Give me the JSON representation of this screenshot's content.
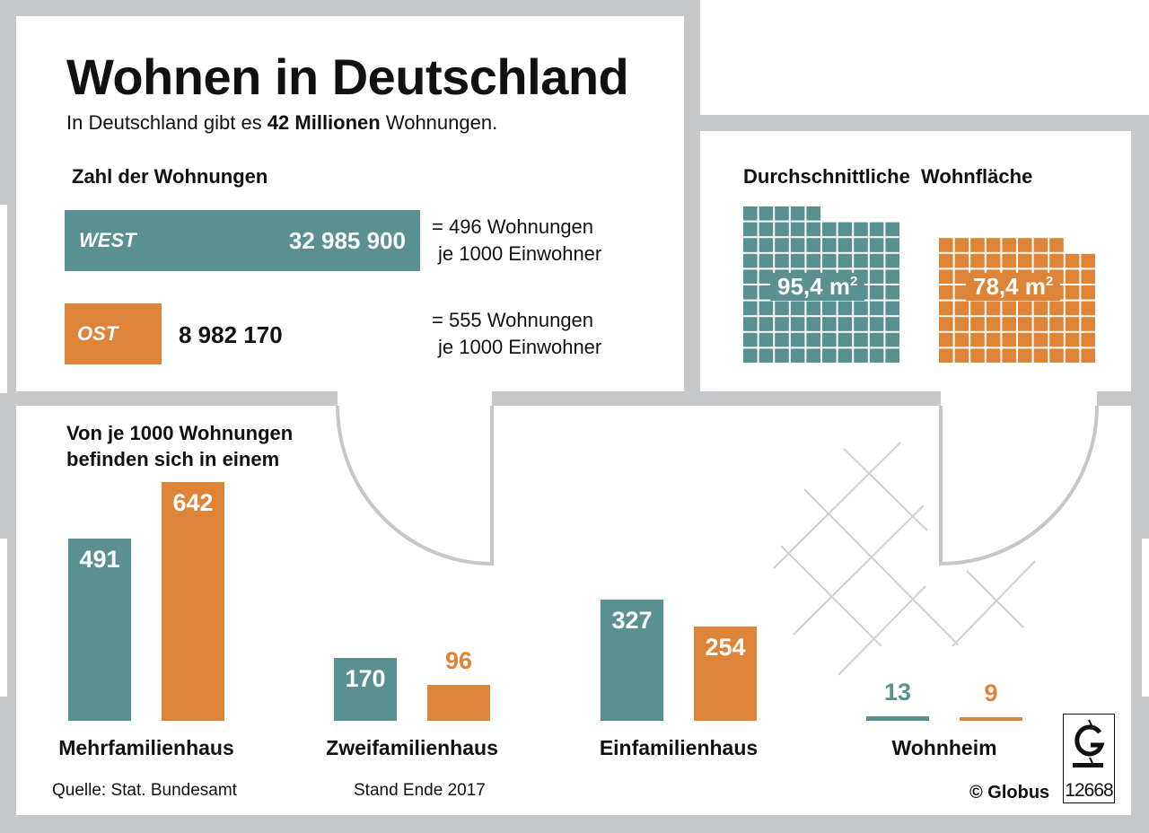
{
  "header": {
    "title": "Wohnen in Deutschland",
    "subtitle_pre": "In Deutschland gibt es ",
    "subtitle_bold": "42 Millionen",
    "subtitle_post": " Wohnungen."
  },
  "colors": {
    "west": "#5a9090",
    "ost": "#de8438",
    "wall": "#c6c7c9"
  },
  "chart_data": [
    {
      "type": "bar",
      "title": "Zahl der Wohnungen",
      "orientation": "horizontal",
      "categories": [
        "WEST",
        "OST"
      ],
      "values": [
        32985900,
        8982170
      ],
      "value_labels": [
        "32 985 900",
        "8 982 170"
      ],
      "annotations": [
        {
          "line1": "= 496 Wohnungen",
          "line2": "je 1000 Einwohner",
          "value": 496
        },
        {
          "line1": "= 555 Wohnungen",
          "line2": "je 1000 Einwohner",
          "value": 555
        }
      ]
    },
    {
      "type": "bar",
      "title": "Durchschnittliche  Wohnfläche",
      "categories": [
        "WEST",
        "OST"
      ],
      "values": [
        95.4,
        78.4
      ],
      "value_labels": [
        "95,4 m",
        "78,4 m"
      ],
      "unit_sup": "2",
      "note": "each grid cell = 1 m²"
    },
    {
      "type": "bar",
      "title_line1": "Von je 1000 Wohnungen",
      "title_line2": "befinden sich in einem",
      "categories": [
        "Mehrfamilienhaus",
        "Zweifamilienhaus",
        "Einfamilienhaus",
        "Wohnheim"
      ],
      "series": [
        {
          "name": "WEST",
          "values": [
            491,
            170,
            327,
            13
          ]
        },
        {
          "name": "OST",
          "values": [
            642,
            96,
            254,
            9
          ]
        }
      ],
      "ylim": [
        0,
        642
      ]
    }
  ],
  "footer": {
    "source": "Quelle: Stat. Bundesamt",
    "date": "Stand Ende 2017",
    "copyright": "© Globus",
    "logo_letter": "G",
    "graphic_number": "12668"
  }
}
